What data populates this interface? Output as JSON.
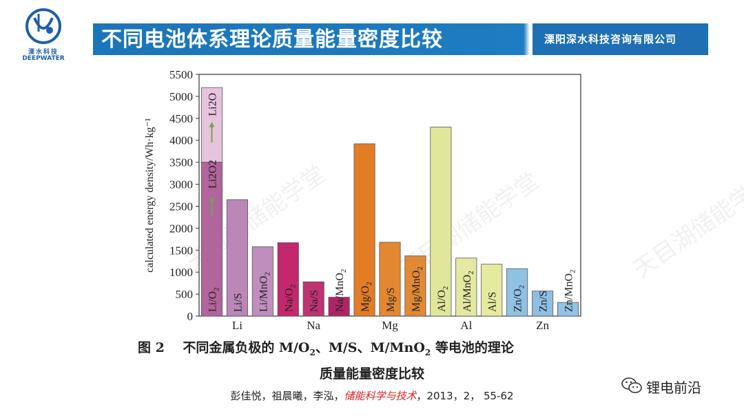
{
  "logo": {
    "cn": "溧水科技",
    "en": "DEEPWATER"
  },
  "banner": {
    "title": "不同电池体系理论质量能量密度比较",
    "company": "溧阳深水科技咨询有限公司"
  },
  "watermark": "天目湖储能学堂",
  "chart_data": {
    "type": "bar",
    "ylabel": "calculated energy density/Wh·kg⁻¹",
    "ylim": [
      0,
      5500
    ],
    "yticks": [
      0,
      500,
      1000,
      1500,
      2000,
      2500,
      3000,
      3500,
      4000,
      4500,
      5000,
      5500
    ],
    "groups": [
      "Li",
      "Na",
      "Mg",
      "Al",
      "Zn"
    ],
    "bars": [
      {
        "label": "Li/O2",
        "sub": "2",
        "base": "Li/O",
        "group": "Li",
        "value": 3500,
        "extra_value": 5200,
        "extra_label": "Li2O",
        "inner_label": "Li2O2",
        "color": "#b2649c",
        "extra_color": "#e8c3dd"
      },
      {
        "label": "Li/S",
        "base": "Li/S",
        "group": "Li",
        "value": 2650,
        "color": "#bb87b7"
      },
      {
        "label": "Li/MnO2",
        "base": "Li/MnO",
        "sub": "2",
        "group": "Li",
        "value": 1580,
        "color": "#bf8ebd"
      },
      {
        "label": "Na/O2",
        "base": "Na/O",
        "sub": "2",
        "group": "Na",
        "value": 1670,
        "color": "#c4286c"
      },
      {
        "label": "Na/S",
        "base": "Na/S",
        "group": "Na",
        "value": 780,
        "color": "#be3374"
      },
      {
        "label": "Na/MnO2",
        "base": "Na/MnO",
        "sub": "2",
        "group": "Na",
        "value": 430,
        "color": "#b02466"
      },
      {
        "label": "Mg/O2",
        "base": "Mg/O",
        "sub": "2",
        "group": "Mg",
        "value": 3920,
        "color": "#e27d26"
      },
      {
        "label": "Mg/S",
        "base": "Mg/S",
        "group": "Mg",
        "value": 1680,
        "color": "#e38830"
      },
      {
        "label": "Mg/MnO2",
        "base": "Mg/MnO",
        "sub": "2",
        "group": "Mg",
        "value": 1370,
        "color": "#e08a35"
      },
      {
        "label": "Al/O2",
        "base": "Al/O",
        "sub": "2",
        "group": "Al",
        "value": 4300,
        "color": "#e1e79a"
      },
      {
        "label": "Al/MnO2",
        "base": "Al/MnO",
        "sub": "2",
        "group": "Al",
        "value": 1320,
        "color": "#e4e8a0"
      },
      {
        "label": "Al/S",
        "base": "Al/S",
        "group": "Al",
        "value": 1180,
        "color": "#e6ea9f"
      },
      {
        "label": "Zn/O2",
        "base": "Zn/O",
        "sub": "2",
        "group": "Zn",
        "value": 1080,
        "color": "#8fc1e3"
      },
      {
        "label": "Zn/S",
        "base": "Zn/S",
        "group": "Zn",
        "value": 570,
        "color": "#8ebfe2"
      },
      {
        "label": "Zn/MnO2",
        "base": "Zn/MnO",
        "sub": "2",
        "group": "Zn",
        "value": 310,
        "color": "#93c3e4"
      }
    ]
  },
  "caption": {
    "fig": "图 2",
    "line1_a": "不同金属负极的 M/O",
    "line1_b": "、M/S、M/MnO",
    "line1_c": " 等电池的理论",
    "sub": "2",
    "line2": "质量能量密度比较"
  },
  "citation": {
    "authors": "彭佳悦，祖晨曦，李泓，",
    "journal": "储能科学与技术",
    "rest": "，2013，2， 55-62"
  },
  "wechat": {
    "name": "锂电前沿"
  }
}
